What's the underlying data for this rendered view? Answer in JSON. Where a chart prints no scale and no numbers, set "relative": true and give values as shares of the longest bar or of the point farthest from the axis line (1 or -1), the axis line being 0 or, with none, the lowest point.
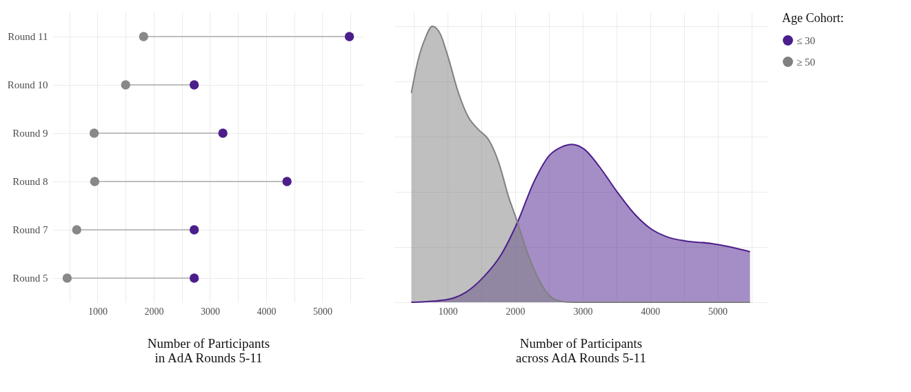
{
  "chart_data": [
    {
      "type": "scatter",
      "orientation": "horizontal",
      "categories": [
        "Round 11",
        "Round 10",
        "Round 9",
        "Round 8",
        "Round 7",
        "Round 5"
      ],
      "xlabel": "Number of Participants\n in AdA Rounds 5-11",
      "xlim": [
        210,
        5730
      ],
      "xticks": [
        {
          "value": 500,
          "label": null
        },
        1000,
        {
          "value": 1500,
          "label": null
        },
        2000,
        {
          "value": 2500,
          "label": null
        },
        3000,
        {
          "value": 3500,
          "label": null
        },
        4000,
        {
          "value": 4500,
          "label": null
        },
        5000,
        {
          "value": 5500,
          "label": null
        }
      ],
      "grid": true,
      "legend": false,
      "marker": "circle",
      "series": [
        {
          "color": "#4b1e8c",
          "values": [
            5480,
            2720,
            3230,
            4370,
            2720,
            2720
          ]
        },
        {
          "color": "#888888",
          "values": [
            1820,
            1500,
            940,
            950,
            630,
            460
          ]
        }
      ]
    },
    {
      "type": "area",
      "relative": true,
      "xlabel": "Number of Participants\nacross AdA Rounds 5-11",
      "xlim": [
        210,
        5730
      ],
      "xticks": [
        {
          "value": 500,
          "label": null
        },
        1000,
        {
          "value": 1500,
          "label": null
        },
        2000,
        {
          "value": 2500,
          "label": null
        },
        3000,
        {
          "value": 3500,
          "label": null
        },
        4000,
        {
          "value": 4500,
          "label": null
        },
        5000,
        {
          "value": 5500,
          "label": null
        }
      ],
      "grid": true,
      "legend": "right",
      "legend_title": "Age Cohort:",
      "series": [
        {
          "name": "≤ 30",
          "color": "#4b1e8c",
          "x": [
            460,
            966,
            1266,
            1528,
            1790,
            2034,
            2277,
            2502,
            2689,
            2839,
            3026,
            3251,
            3513,
            3775,
            4000,
            4262,
            4524,
            4899,
            5198,
            5480
          ],
          "values": [
            0,
            0.009,
            0.036,
            0.091,
            0.172,
            0.29,
            0.436,
            0.531,
            0.563,
            0.572,
            0.554,
            0.49,
            0.399,
            0.318,
            0.268,
            0.236,
            0.222,
            0.213,
            0.2,
            0.183
          ]
        },
        {
          "name": "≥ 50",
          "color": "#808080",
          "x": [
            460,
            554,
            667,
            771,
            891,
            1004,
            1154,
            1303,
            1453,
            1603,
            1753,
            1903,
            2034,
            2165,
            2315,
            2464,
            2652,
            2839,
            5480
          ],
          "values": [
            0.758,
            0.871,
            0.957,
            1,
            0.971,
            0.889,
            0.762,
            0.672,
            0.626,
            0.59,
            0.508,
            0.381,
            0.29,
            0.19,
            0.1,
            0.036,
            0.005,
            0,
            0
          ]
        }
      ]
    }
  ]
}
